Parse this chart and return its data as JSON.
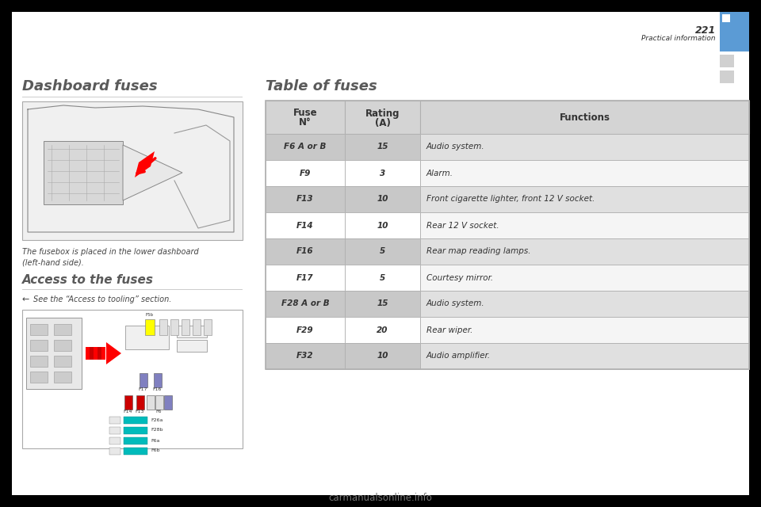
{
  "page_number": "221",
  "section_title": "Practical information",
  "left_heading": "Dashboard fuses",
  "table_heading": "Table of fuses",
  "left_text1": "The fusebox is placed in the lower dashboard",
  "left_text2": "(left-hand side).",
  "access_heading": "Access to the fuses",
  "access_bullet": "←",
  "access_text": "See the “Access to tooling” section.",
  "col_header1": "Fuse\nN°",
  "col_header2": "Rating\n(A)",
  "col_header3": "Functions",
  "col_header_bg": "#d4d4d4",
  "table_rows": [
    {
      "fuse": "F6 A or B",
      "rating": "15",
      "function": "Audio system.",
      "alt": true
    },
    {
      "fuse": "F9",
      "rating": "3",
      "function": "Alarm.",
      "alt": false
    },
    {
      "fuse": "F13",
      "rating": "10",
      "function": "Front cigarette lighter, front 12 V socket.",
      "alt": true
    },
    {
      "fuse": "F14",
      "rating": "10",
      "function": "Rear 12 V socket.",
      "alt": false
    },
    {
      "fuse": "F16",
      "rating": "5",
      "function": "Rear map reading lamps.",
      "alt": true
    },
    {
      "fuse": "F17",
      "rating": "5",
      "function": "Courtesy mirror.",
      "alt": false
    },
    {
      "fuse": "F28 A or B",
      "rating": "15",
      "function": "Audio system.",
      "alt": true
    },
    {
      "fuse": "F29",
      "rating": "20",
      "function": "Rear wiper.",
      "alt": false
    },
    {
      "fuse": "F32",
      "rating": "10",
      "function": "Audio amplifier.",
      "alt": true
    }
  ],
  "page_bg": "#000000",
  "content_bg": "#ffffff",
  "blue_color": "#5b9bd5",
  "gray_sq_color": "#d0d0d0",
  "heading_color": "#5a5a5a",
  "text_color": "#444444",
  "border_color": "#b0b0b0",
  "alt_row_col1": "#c8c8c8",
  "alt_row_col3": "#e0e0e0",
  "norm_row_col1": "#ffffff",
  "norm_row_col3": "#f5f5f5",
  "watermark": "carmanualsonline.info"
}
